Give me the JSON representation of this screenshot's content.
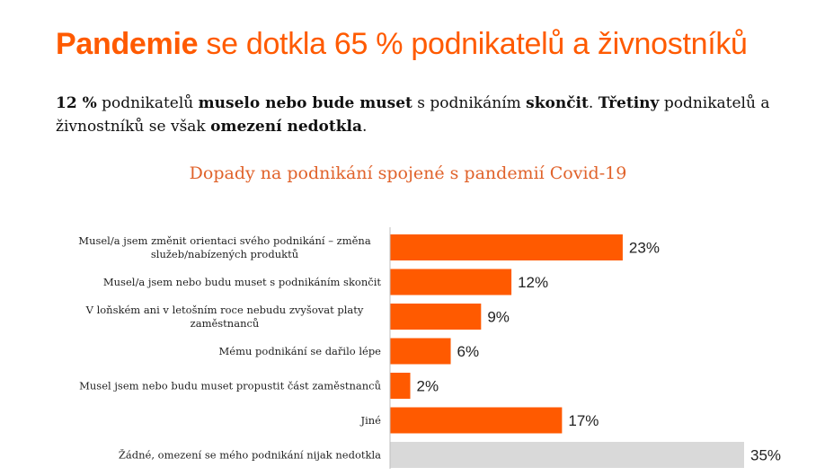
{
  "header": {
    "title_bold": "Pandemie",
    "title_rest": " se dotkla 65 % podnikatelů a živnostníků"
  },
  "subtitle": {
    "p1": "12 %",
    "p2": " podnikatelů ",
    "p3": "muselo nebo bude muset",
    "p4": " s podnikáním ",
    "p5": "skončit",
    "p6": ". ",
    "p7": "Třetiny",
    "p8": " podnikatelů a živnostníků se však ",
    "p9": "omezení nedotkla",
    "p10": "."
  },
  "colors": {
    "accent": "#ff5a00",
    "neutral": "#d9d9d9",
    "title_chart": "#e0622a"
  },
  "chart_data": {
    "type": "bar",
    "orientation": "horizontal",
    "title": "Dopady na podnikání spojené s pandemií Covid-19",
    "categories": [
      [
        "Musel/a jsem změnit orientaci svého podnikání – změna",
        "služeb/nabízených produktů"
      ],
      [
        "Musel/a jsem nebo budu muset s podnikáním skončit"
      ],
      [
        "V loňském ani v letošním roce nebudu zvyšovat platy",
        "zaměstnanců"
      ],
      [
        "Mému podnikání se dařilo lépe"
      ],
      [
        "Musel jsem nebo budu muset propustit část zaměstnanců"
      ],
      [
        "Jiné"
      ],
      [
        "Žádné, omezení se mého podnikání nijak nedotkla"
      ]
    ],
    "values": [
      23,
      12,
      9,
      6,
      2,
      17,
      35
    ],
    "labels": [
      "23%",
      "12%",
      "9%",
      "6%",
      "2%",
      "17%",
      "35%"
    ],
    "bar_colors": [
      "#ff5a00",
      "#ff5a00",
      "#ff5a00",
      "#ff5a00",
      "#ff5a00",
      "#ff5a00",
      "#d9d9d9"
    ],
    "xlim": [
      0,
      35
    ],
    "grid": false,
    "legend": "none"
  }
}
